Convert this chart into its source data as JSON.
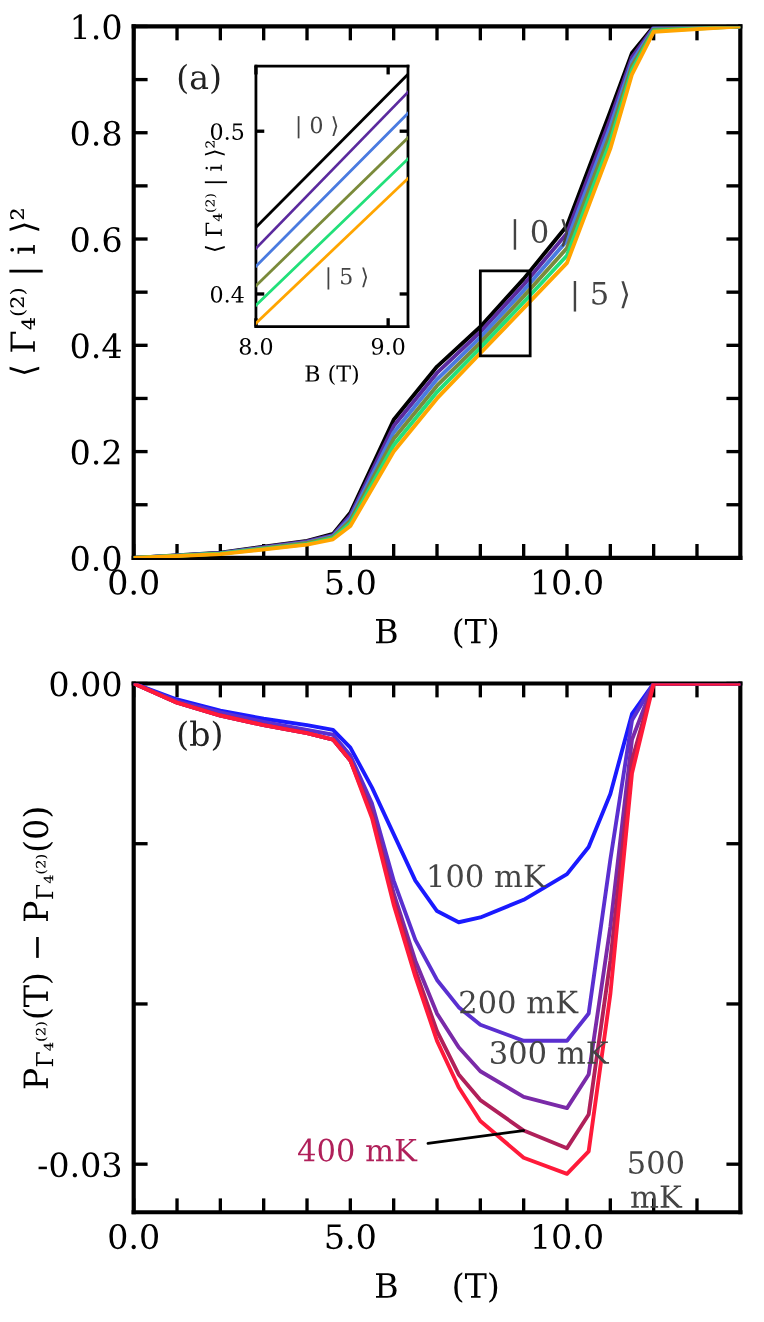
{
  "chart_data": [
    {
      "type": "line",
      "xlabel": "B     (T)",
      "ylabel": "⟨ Γ₄⁽²⁾ | i ⟩²",
      "xlim": [
        0,
        14
      ],
      "ylim": [
        0,
        1.0
      ],
      "xticks": [
        {
          "value": 0,
          "label": "0.0"
        },
        {
          "value": 1,
          "label": null
        },
        {
          "value": 2,
          "label": null
        },
        {
          "value": 3,
          "label": null
        },
        {
          "value": 4,
          "label": null
        },
        {
          "value": 5,
          "label": "5.0"
        },
        {
          "value": 6,
          "label": null
        },
        {
          "value": 7,
          "label": null
        },
        {
          "value": 8,
          "label": null
        },
        {
          "value": 9,
          "label": null
        },
        {
          "value": 10,
          "label": "10.0"
        },
        {
          "value": 11,
          "label": null
        },
        {
          "value": 12,
          "label": null
        },
        {
          "value": 13,
          "label": null
        }
      ],
      "yticks": [
        {
          "value": 0,
          "label": "0.0"
        },
        {
          "value": 0.1,
          "label": null
        },
        {
          "value": 0.2,
          "label": "0.2"
        },
        {
          "value": 0.3,
          "label": null
        },
        {
          "value": 0.4,
          "label": "0.4"
        },
        {
          "value": 0.5,
          "label": null
        },
        {
          "value": 0.6,
          "label": "0.6"
        },
        {
          "value": 0.7,
          "label": null
        },
        {
          "value": 0.8,
          "label": "0.8"
        },
        {
          "value": 0.9,
          "label": null
        },
        {
          "value": 1.0,
          "label": "1.0"
        }
      ],
      "x": [
        0,
        2,
        4,
        4.6,
        5,
        6,
        7,
        8,
        9,
        10,
        11,
        11.5,
        12,
        14
      ],
      "series": [
        {
          "name": "| 0 ⟩",
          "color": "#000000",
          "values": [
            0,
            0.01,
            0.032,
            0.045,
            0.085,
            0.26,
            0.36,
            0.435,
            0.525,
            0.625,
            0.84,
            0.95,
            1.0,
            1.0
          ]
        },
        {
          "color": "#5b2a9e",
          "values": [
            0,
            0.009,
            0.031,
            0.043,
            0.08,
            0.248,
            0.348,
            0.425,
            0.514,
            0.611,
            0.826,
            0.942,
            0.998,
            1.0
          ]
        },
        {
          "color": "#4a7be0",
          "values": [
            0,
            0.009,
            0.029,
            0.041,
            0.075,
            0.236,
            0.336,
            0.415,
            0.503,
            0.597,
            0.812,
            0.934,
            0.996,
            1.0
          ]
        },
        {
          "color": "#7a8a3a",
          "values": [
            0,
            0.008,
            0.028,
            0.039,
            0.07,
            0.224,
            0.324,
            0.405,
            0.492,
            0.583,
            0.798,
            0.926,
            0.994,
            1.0
          ]
        },
        {
          "color": "#22e07a",
          "values": [
            0,
            0.008,
            0.026,
            0.037,
            0.065,
            0.212,
            0.312,
            0.395,
            0.481,
            0.569,
            0.784,
            0.918,
            0.992,
            1.0
          ]
        },
        {
          "name": "| 5 ⟩",
          "color": "#ffa500",
          "values": [
            0,
            0.007,
            0.025,
            0.035,
            0.06,
            0.2,
            0.3,
            0.385,
            0.47,
            0.555,
            0.77,
            0.91,
            0.99,
            1.0
          ]
        }
      ],
      "annotations": [
        "(a)"
      ]
    },
    {
      "type": "line",
      "xlabel": "B (T)",
      "ylabel": "⟨ Γ₄⁽²⁾ | i ⟩²",
      "xlim": [
        8.0,
        9.15
      ],
      "ylim": [
        0.38,
        0.54
      ],
      "xticks": [
        {
          "value": 8.0,
          "label": "8.0"
        },
        {
          "value": 9.0,
          "label": "9.0"
        }
      ],
      "yticks": [
        {
          "value": 0.4,
          "label": "0.4"
        },
        {
          "value": 0.5,
          "label": "0.5"
        }
      ],
      "x": [
        8.0,
        9.15
      ],
      "series": [
        {
          "name": "| 0 ⟩",
          "color": "#000000",
          "values": [
            0.441,
            0.535
          ]
        },
        {
          "color": "#5b2a9e",
          "values": [
            0.428,
            0.524
          ]
        },
        {
          "color": "#4a7be0",
          "values": [
            0.417,
            0.511
          ]
        },
        {
          "color": "#7a8a3a",
          "values": [
            0.405,
            0.496
          ]
        },
        {
          "color": "#22e07a",
          "values": [
            0.393,
            0.483
          ]
        },
        {
          "name": "| 5 ⟩",
          "color": "#ffa500",
          "values": [
            0.382,
            0.471
          ]
        }
      ]
    },
    {
      "type": "line",
      "xlabel": "B     (T)",
      "ylabel": "P$_{Γ₄⁽²⁾}$(T) − P$_{Γ₄⁽²⁾}$(0)",
      "xlim": [
        0,
        14
      ],
      "ylim": [
        -0.033,
        0
      ],
      "xticks": [
        {
          "value": 0,
          "label": "0.0"
        },
        {
          "value": 1,
          "label": null
        },
        {
          "value": 2,
          "label": null
        },
        {
          "value": 3,
          "label": null
        },
        {
          "value": 4,
          "label": null
        },
        {
          "value": 5,
          "label": "5.0"
        },
        {
          "value": 6,
          "label": null
        },
        {
          "value": 7,
          "label": null
        },
        {
          "value": 8,
          "label": null
        },
        {
          "value": 9,
          "label": null
        },
        {
          "value": 10,
          "label": "10.0"
        },
        {
          "value": 11,
          "label": null
        },
        {
          "value": 12,
          "label": null
        },
        {
          "value": 13,
          "label": null
        }
      ],
      "yticks": [
        {
          "value": 0,
          "label": "0.00"
        },
        {
          "value": -0.01,
          "label": null
        },
        {
          "value": -0.02,
          "label": null
        },
        {
          "value": -0.03,
          "label": "-0.03"
        }
      ],
      "x": [
        0,
        1,
        2,
        3,
        4,
        4.6,
        5,
        5.5,
        6,
        6.5,
        7,
        7.5,
        8,
        9,
        10,
        10.5,
        11,
        11.5,
        12,
        14
      ],
      "series": [
        {
          "name": "100 mK",
          "color": "#1a1aff",
          "values": [
            0,
            -0.001,
            -0.0017,
            -0.0022,
            -0.0026,
            -0.0029,
            -0.004,
            -0.0065,
            -0.0094,
            -0.0123,
            -0.0142,
            -0.0149,
            -0.0146,
            -0.0135,
            -0.0119,
            -0.0102,
            -0.0069,
            -0.0019,
            0,
            0
          ]
        },
        {
          "name": "200 mK",
          "color": "#5a2fd0",
          "values": [
            0,
            -0.0011,
            -0.0018,
            -0.0024,
            -0.0029,
            -0.0032,
            -0.0045,
            -0.0075,
            -0.0123,
            -0.016,
            -0.0185,
            -0.0202,
            -0.0213,
            -0.0223,
            -0.0223,
            -0.0206,
            -0.011,
            -0.0023,
            0,
            0
          ]
        },
        {
          "name": "300 mK",
          "color": "#7a2aa8",
          "values": [
            0,
            -0.0012,
            -0.002,
            -0.0026,
            -0.0031,
            -0.0035,
            -0.0048,
            -0.0078,
            -0.0131,
            -0.0173,
            -0.0206,
            -0.0227,
            -0.0242,
            -0.0258,
            -0.0265,
            -0.0244,
            -0.0152,
            -0.0035,
            0,
            0
          ]
        },
        {
          "name": "400 mK",
          "color": "#b0205a",
          "values": [
            0,
            -0.0012,
            -0.002,
            -0.0026,
            -0.0031,
            -0.0035,
            -0.0048,
            -0.0082,
            -0.0135,
            -0.0179,
            -0.0217,
            -0.0244,
            -0.026,
            -0.0279,
            -0.029,
            -0.0269,
            -0.0173,
            -0.0048,
            0,
            0
          ]
        },
        {
          "name": "500\nmK",
          "color": "#ff1a3a",
          "values": [
            0,
            -0.0012,
            -0.002,
            -0.0026,
            -0.0031,
            -0.0035,
            -0.0048,
            -0.0084,
            -0.0138,
            -0.0183,
            -0.0223,
            -0.0252,
            -0.0273,
            -0.0296,
            -0.0306,
            -0.0292,
            -0.0194,
            -0.0056,
            0,
            0
          ]
        }
      ],
      "annotations": [
        "(b)"
      ]
    }
  ]
}
